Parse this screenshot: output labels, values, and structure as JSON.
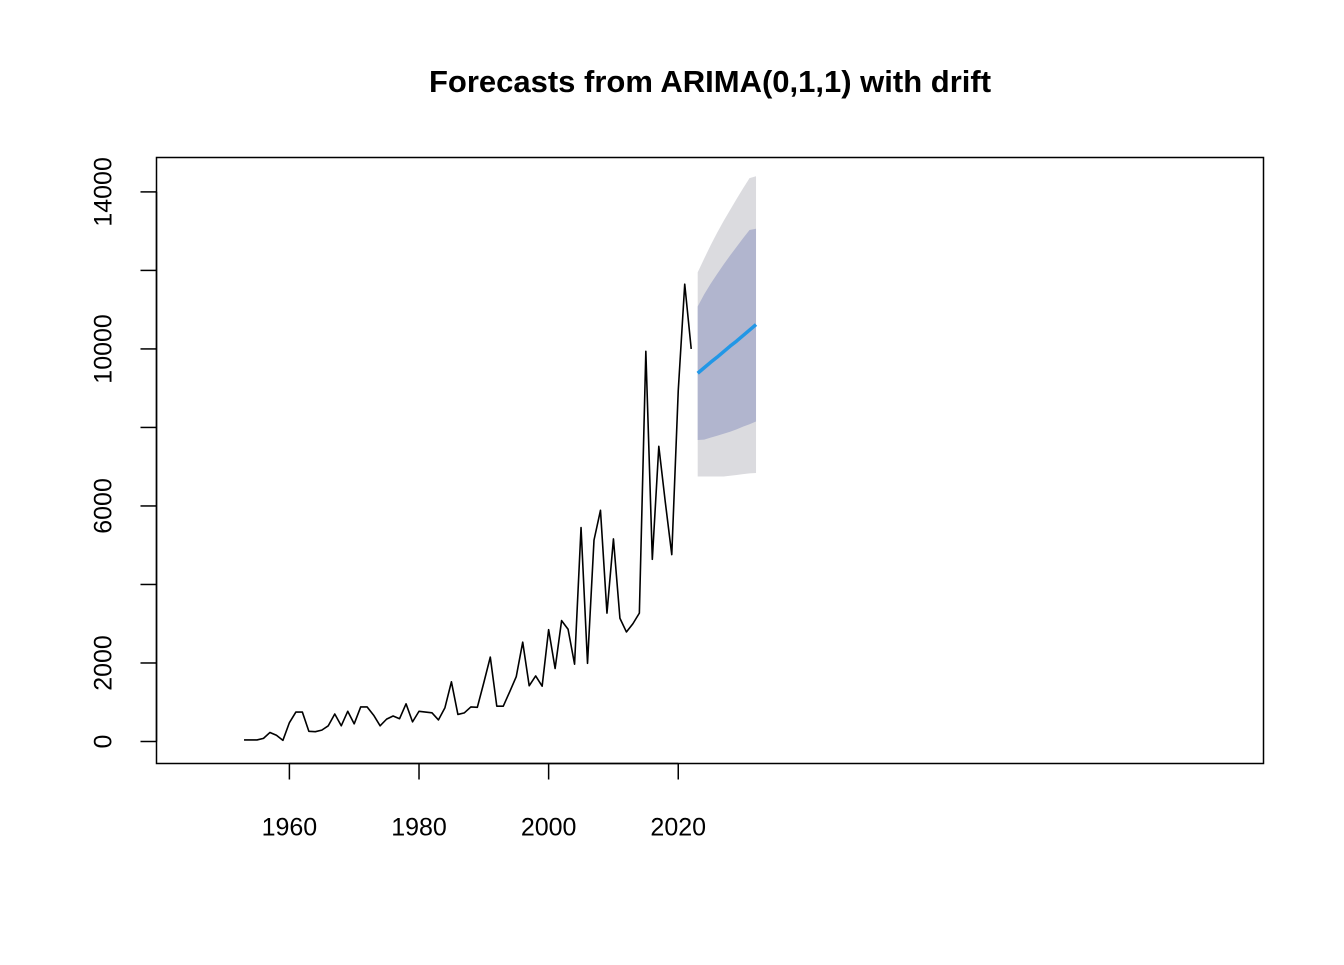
{
  "chart_data": {
    "type": "line",
    "title": "Forecasts from ARIMA(0,1,1) with drift",
    "xlabel": "",
    "ylabel": "",
    "xlim": [
      1950,
      2034
    ],
    "ylim": [
      -500,
      15000
    ],
    "x_ticks": [
      1960,
      1980,
      2000,
      2020
    ],
    "y_ticks": [
      0,
      2000,
      6000,
      10000,
      14000
    ],
    "y_tick_labels": [
      "0",
      "2000",
      "6000",
      "10000",
      "14000"
    ],
    "grid": false,
    "legend": "none",
    "series": [
      {
        "role": "observed",
        "color": "#000000",
        "x": [
          1953,
          1954,
          1955,
          1956,
          1957,
          1958,
          1959,
          1960,
          1961,
          1962,
          1963,
          1964,
          1965,
          1966,
          1967,
          1968,
          1969,
          1970,
          1971,
          1972,
          1973,
          1974,
          1975,
          1976,
          1977,
          1978,
          1979,
          1980,
          1981,
          1982,
          1983,
          1984,
          1985,
          1986,
          1987,
          1988,
          1989,
          1990,
          1991,
          1992,
          1993,
          1994,
          1995,
          1996,
          1997,
          1998,
          1999,
          2000,
          2001,
          2002,
          2003,
          2004,
          2005,
          2006,
          2007,
          2008,
          2009,
          2010,
          2011,
          2012,
          2013,
          2014,
          2015,
          2016,
          2017,
          2018,
          2019,
          2020,
          2021,
          2022
        ],
        "y": [
          40,
          40,
          40,
          80,
          230,
          160,
          30,
          480,
          750,
          750,
          260,
          250,
          290,
          400,
          700,
          400,
          770,
          450,
          880,
          880,
          670,
          400,
          570,
          650,
          580,
          960,
          500,
          770,
          750,
          730,
          550,
          860,
          1520,
          690,
          730,
          880,
          870,
          1500,
          2150,
          900,
          900,
          1270,
          1650,
          2530,
          1420,
          1670,
          1410,
          2850,
          1860,
          3080,
          2860,
          1970,
          5450,
          1990,
          5130,
          5890,
          3270,
          5160,
          3140,
          2790,
          3000,
          3270,
          9940,
          4640,
          7520,
          6100,
          4760,
          8940,
          11650,
          10000
        ]
      },
      {
        "role": "forecast",
        "color": "#2297e6",
        "x": [
          2023,
          2024,
          2025,
          2026,
          2027,
          2028,
          2029,
          2030,
          2031,
          2032
        ],
        "y": [
          9380,
          9520,
          9660,
          9790,
          9930,
          10070,
          10200,
          10340,
          10480,
          10620
        ]
      }
    ],
    "bands": [
      {
        "level": 95,
        "color": "#dbdbdf",
        "x": [
          2023,
          2024,
          2025,
          2026,
          2027,
          2028,
          2029,
          2030,
          2031,
          2032
        ],
        "lower": [
          6750,
          6750,
          6750,
          6750,
          6750,
          6770,
          6790,
          6810,
          6830,
          6840
        ],
        "upper": [
          11950,
          12300,
          12640,
          12960,
          13260,
          13540,
          13820,
          14090,
          14350,
          14400
        ]
      },
      {
        "level": 80,
        "color": "#b1b5ce",
        "x": [
          2023,
          2024,
          2025,
          2026,
          2027,
          2028,
          2029,
          2030,
          2031,
          2032
        ],
        "lower": [
          7680,
          7690,
          7740,
          7790,
          7840,
          7890,
          7950,
          8020,
          8080,
          8150
        ],
        "upper": [
          11080,
          11390,
          11660,
          11910,
          12150,
          12380,
          12600,
          12820,
          13030,
          13060
        ]
      }
    ]
  }
}
